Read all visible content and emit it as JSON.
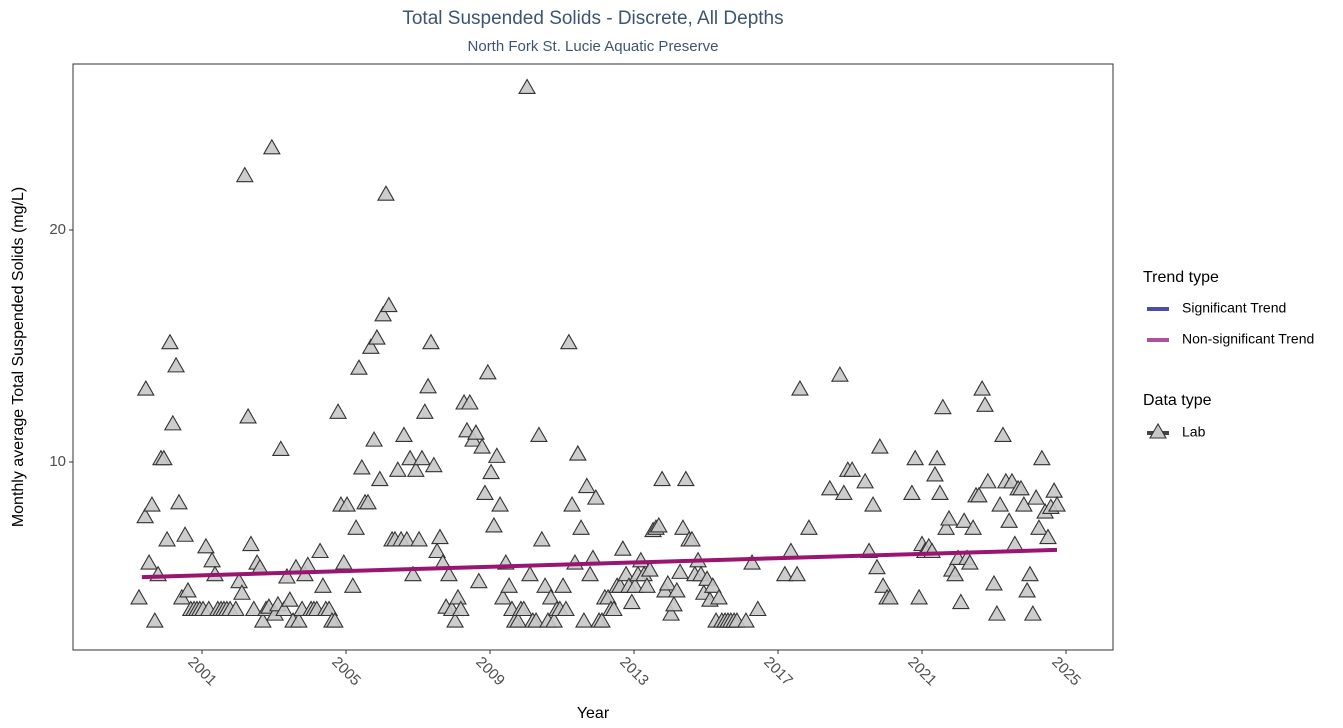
{
  "chart_data": {
    "type": "scatter",
    "title": "Total Suspended Solids - Discrete, All Depths",
    "subtitle": "North Fork St. Lucie Aquatic Preserve",
    "x_label": "Year",
    "y_label": "Monthly average Total Suspended Solids (mg/L)",
    "xlim": [
      1997.417,
      2026.306
    ],
    "ylim": [
      1.897,
      27.155
    ],
    "xticks": [
      2001,
      2005,
      2009,
      2013,
      2017,
      2021,
      2025
    ],
    "yticks": [
      10,
      20
    ],
    "grid": false,
    "series": [
      {
        "name": "Lab",
        "color": "#c8c8c8",
        "x": [
          1999.25,
          1999.42,
          1999.44,
          1999.53,
          1999.61,
          1999.69,
          1999.78,
          1999.86,
          1999.94,
          2000.03,
          2000.11,
          2000.19,
          2000.28,
          2000.36,
          2000.44,
          2000.53,
          2000.61,
          2000.69,
          2000.78,
          2000.86,
          2000.94,
          2001.03,
          2001.11,
          2001.19,
          2001.28,
          2001.36,
          2001.44,
          2001.53,
          2001.61,
          2001.69,
          2001.78,
          2001.94,
          2002.03,
          2002.11,
          2002.19,
          2002.28,
          2002.36,
          2002.44,
          2002.53,
          2002.61,
          2002.69,
          2002.78,
          2002.86,
          2002.94,
          2003.03,
          2003.11,
          2003.19,
          2003.28,
          2003.36,
          2003.44,
          2003.53,
          2003.61,
          2003.69,
          2003.78,
          2003.86,
          2003.94,
          2004.03,
          2004.11,
          2004.19,
          2004.28,
          2004.36,
          2004.44,
          2004.53,
          2004.61,
          2004.69,
          2004.78,
          2004.86,
          2004.94,
          2005.03,
          2005.19,
          2005.28,
          2005.36,
          2005.44,
          2005.53,
          2005.61,
          2005.69,
          2005.78,
          2005.86,
          2005.94,
          2006.03,
          2006.11,
          2006.19,
          2006.28,
          2006.36,
          2006.44,
          2006.53,
          2006.61,
          2006.69,
          2006.78,
          2006.86,
          2006.94,
          2007.03,
          2007.11,
          2007.19,
          2007.28,
          2007.36,
          2007.44,
          2007.53,
          2007.61,
          2007.69,
          2007.78,
          2007.86,
          2007.94,
          2008.03,
          2008.11,
          2008.19,
          2008.28,
          2008.36,
          2008.44,
          2008.53,
          2008.61,
          2008.69,
          2008.78,
          2008.86,
          2008.94,
          2009.03,
          2009.11,
          2009.19,
          2009.28,
          2009.36,
          2009.44,
          2009.53,
          2009.61,
          2009.69,
          2009.78,
          2009.86,
          2009.94,
          2010.03,
          2010.11,
          2010.19,
          2010.28,
          2010.36,
          2010.44,
          2010.53,
          2010.61,
          2010.69,
          2010.78,
          2010.86,
          2010.94,
          2011.03,
          2011.11,
          2011.19,
          2011.28,
          2011.36,
          2011.44,
          2011.53,
          2011.61,
          2011.69,
          2011.78,
          2011.86,
          2011.94,
          2012.03,
          2012.11,
          2012.19,
          2012.28,
          2012.36,
          2012.44,
          2012.53,
          2012.61,
          2012.69,
          2012.78,
          2012.86,
          2012.94,
          2013.03,
          2013.11,
          2013.19,
          2013.28,
          2013.36,
          2013.44,
          2013.53,
          2013.61,
          2013.69,
          2013.78,
          2013.86,
          2013.94,
          2014.03,
          2014.11,
          2014.19,
          2014.28,
          2014.36,
          2014.44,
          2014.53,
          2014.61,
          2014.69,
          2014.78,
          2014.86,
          2014.94,
          2015.03,
          2015.11,
          2015.19,
          2015.28,
          2015.36,
          2015.44,
          2015.53,
          2015.61,
          2015.69,
          2015.78,
          2015.86,
          2016.11,
          2016.28,
          2016.44,
          2017.19,
          2017.36,
          2017.53,
          2017.61,
          2017.86,
          2018.44,
          2018.72,
          2018.83,
          2018.94,
          2019.06,
          2019.42,
          2019.53,
          2019.64,
          2019.75,
          2019.83,
          2019.92,
          2020.03,
          2020.11,
          2020.72,
          2020.81,
          2020.92,
          2021.0,
          2021.08,
          2021.19,
          2021.28,
          2021.36,
          2021.42,
          2021.5,
          2021.58,
          2021.67,
          2021.75,
          2021.83,
          2021.92,
          2022.0,
          2022.08,
          2022.17,
          2022.25,
          2022.33,
          2022.42,
          2022.5,
          2022.58,
          2022.67,
          2022.75,
          2022.83,
          2023.0,
          2023.08,
          2023.17,
          2023.25,
          2023.33,
          2023.42,
          2023.5,
          2023.58,
          2023.67,
          2023.75,
          2023.83,
          2023.92,
          2024.0,
          2024.08,
          2024.17,
          2024.25,
          2024.33,
          2024.42,
          2024.5,
          2024.58,
          2024.67,
          2024.75
        ],
        "values": [
          4.1,
          7.6,
          13.1,
          5.6,
          8.1,
          3.1,
          5.1,
          10.1,
          10.1,
          6.6,
          15.1,
          11.6,
          14.1,
          8.2,
          4.1,
          6.8,
          4.4,
          3.6,
          3.6,
          3.6,
          3.6,
          3.6,
          6.3,
          3.6,
          5.7,
          5.1,
          3.6,
          3.6,
          3.6,
          3.6,
          3.6,
          3.6,
          4.8,
          4.3,
          22.3,
          11.9,
          6.4,
          3.6,
          5.6,
          5.4,
          3.1,
          3.6,
          3.7,
          23.5,
          3.4,
          3.8,
          10.5,
          3.6,
          5.0,
          4.0,
          3.1,
          5.4,
          3.1,
          3.6,
          5.1,
          5.5,
          3.6,
          3.6,
          3.6,
          6.1,
          4.6,
          3.6,
          3.6,
          3.1,
          3.1,
          12.1,
          8.1,
          5.6,
          8.1,
          4.6,
          7.1,
          14.0,
          9.7,
          8.2,
          8.2,
          14.9,
          10.9,
          15.3,
          9.2,
          16.3,
          21.5,
          16.7,
          6.6,
          6.6,
          9.6,
          6.6,
          11.1,
          6.6,
          10.1,
          5.1,
          9.6,
          6.6,
          10.1,
          12.1,
          13.2,
          15.1,
          9.8,
          6.1,
          6.7,
          5.6,
          3.7,
          5.1,
          3.6,
          3.1,
          4.1,
          3.6,
          12.5,
          11.3,
          12.5,
          10.9,
          11.2,
          4.8,
          10.6,
          8.6,
          13.8,
          9.5,
          7.2,
          10.2,
          8.1,
          4.1,
          5.6,
          4.6,
          3.6,
          3.1,
          3.1,
          3.6,
          3.6,
          26.1,
          5.1,
          3.1,
          3.1,
          11.1,
          6.6,
          4.6,
          3.1,
          4.1,
          3.1,
          3.6,
          3.6,
          4.6,
          3.6,
          15.1,
          8.1,
          5.6,
          10.3,
          7.1,
          3.1,
          8.9,
          5.1,
          5.8,
          8.4,
          3.1,
          3.1,
          4.1,
          4.1,
          3.6,
          3.6,
          4.6,
          4.6,
          6.2,
          5.1,
          4.6,
          3.9,
          4.6,
          5.1,
          5.7,
          5.1,
          4.6,
          5.3,
          7.0,
          7.1,
          7.2,
          9.2,
          4.4,
          4.7,
          3.4,
          3.8,
          4.4,
          5.2,
          7.1,
          9.2,
          6.6,
          6.6,
          5.1,
          5.7,
          5.1,
          4.3,
          4.9,
          4.0,
          4.6,
          3.1,
          4.1,
          3.1,
          3.1,
          3.1,
          3.1,
          3.1,
          3.1,
          3.1,
          5.6,
          3.6,
          5.1,
          6.1,
          5.1,
          13.1,
          7.1,
          8.8,
          13.7,
          8.6,
          9.6,
          9.6,
          9.1,
          6.1,
          8.1,
          5.4,
          10.6,
          4.6,
          4.1,
          4.1,
          8.6,
          10.1,
          4.1,
          6.4,
          6.1,
          6.3,
          6.1,
          9.4,
          10.1,
          8.6,
          12.3,
          7.1,
          7.5,
          5.3,
          5.1,
          5.8,
          3.9,
          7.4,
          5.8,
          5.6,
          7.1,
          8.5,
          8.5,
          13.1,
          12.4,
          9.1,
          4.7,
          3.4,
          8.1,
          11.1,
          9.1,
          7.4,
          9.1,
          6.4,
          8.8,
          8.8,
          8.1,
          4.4,
          5.1,
          3.4,
          8.4,
          7.1,
          10.1,
          7.8,
          6.7,
          8.0,
          8.7,
          8.1
        ]
      }
    ],
    "trend": {
      "color": "#99156f",
      "x": [
        1999.33,
        2024.75
      ],
      "values": [
        5.04,
        6.21
      ]
    },
    "legend": {
      "trend_title": "Trend type",
      "trend_items": [
        {
          "name": "Significant Trend",
          "color": "#4b4bb0"
        },
        {
          "name": "Non-significant Trend",
          "color": "#b0509a"
        }
      ],
      "data_title": "Data type",
      "data_items": [
        {
          "name": "Lab",
          "color": "#c8c8c8"
        }
      ]
    }
  }
}
